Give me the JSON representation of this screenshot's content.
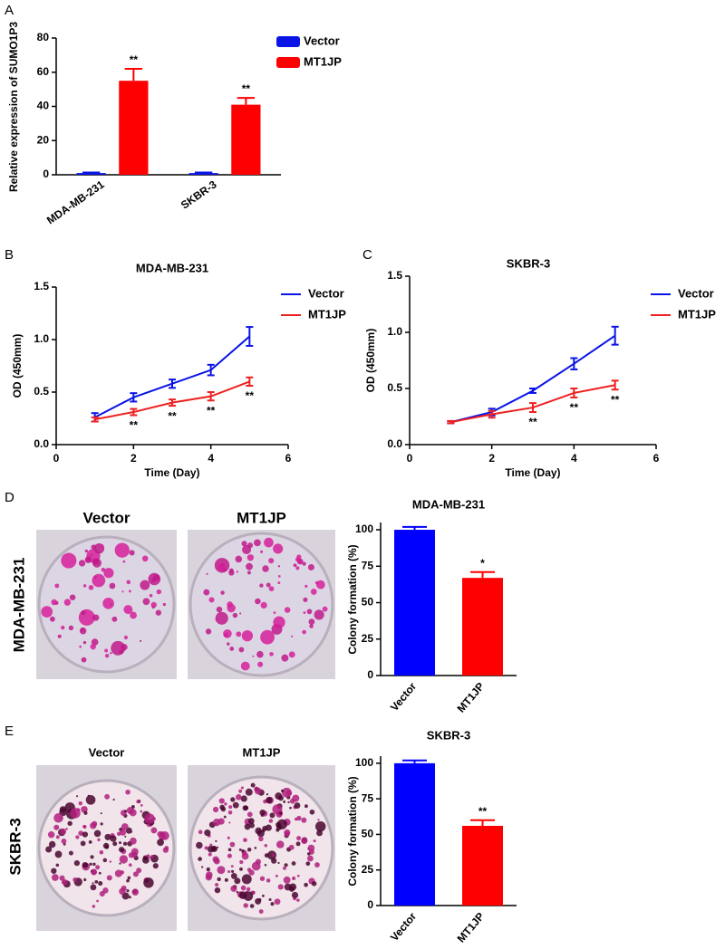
{
  "chart_data": [
    {
      "type": "bar",
      "panel": "A",
      "ylabel": "Relative expression of SUMO1P3",
      "categories": [
        "MDA-MB-231",
        "SKBR-3"
      ],
      "series": [
        {
          "name": "Vector",
          "color": "#0a14e6",
          "values": [
            1,
            1
          ],
          "errors": [
            0.3,
            0.3
          ]
        },
        {
          "name": "MT1JP",
          "color": "#ff0000",
          "values": [
            55,
            41
          ],
          "errors": [
            7,
            4
          ],
          "significance": [
            "**",
            "**"
          ]
        }
      ],
      "ylim": [
        0,
        80
      ],
      "yticks": [
        0,
        20,
        40,
        60,
        80
      ]
    },
    {
      "type": "line",
      "panel": "B",
      "title": "MDA-MB-231",
      "xlabel": "Time (Day)",
      "ylabel": "OD (450mm)",
      "x": [
        1,
        2,
        3,
        4,
        5
      ],
      "series": [
        {
          "name": "Vector",
          "color": "#0a14e6",
          "values": [
            0.26,
            0.45,
            0.58,
            0.71,
            1.03
          ],
          "errors": [
            0.04,
            0.04,
            0.04,
            0.05,
            0.09
          ]
        },
        {
          "name": "MT1JP",
          "color": "#ee2020",
          "values": [
            0.24,
            0.31,
            0.4,
            0.46,
            0.6
          ],
          "errors": [
            0.02,
            0.03,
            0.03,
            0.04,
            0.04
          ],
          "significance": [
            null,
            "**",
            "**",
            "**",
            "**"
          ]
        }
      ],
      "xlim": [
        0,
        6
      ],
      "xticks": [
        0,
        2,
        4,
        6
      ],
      "ylim": [
        0,
        1.5
      ],
      "yticks": [
        {
          "value": 0,
          "label": "0.0"
        },
        0.5,
        {
          "value": 1,
          "label": "1.0"
        },
        1.5
      ]
    },
    {
      "type": "line",
      "panel": "C",
      "title": "SKBR-3",
      "xlabel": "Time (Day)",
      "ylabel": "OD (450mm)",
      "x": [
        1,
        2,
        3,
        4,
        5
      ],
      "series": [
        {
          "name": "Vector",
          "color": "#0a14e6",
          "values": [
            0.2,
            0.29,
            0.48,
            0.72,
            0.97
          ],
          "errors": [
            0.01,
            0.03,
            0.02,
            0.05,
            0.08
          ]
        },
        {
          "name": "MT1JP",
          "color": "#ee2020",
          "values": [
            0.2,
            0.27,
            0.33,
            0.46,
            0.53
          ],
          "errors": [
            0.01,
            0.03,
            0.04,
            0.04,
            0.04
          ],
          "significance": [
            null,
            null,
            "**",
            "**",
            "**"
          ]
        }
      ],
      "xlim": [
        0,
        6
      ],
      "xticks": [
        0,
        2,
        4,
        6
      ],
      "ylim": [
        0,
        1.5
      ],
      "yticks": [
        {
          "value": 0,
          "label": "0.0"
        },
        0.5,
        {
          "value": 1,
          "label": "1.0"
        },
        1.5
      ]
    },
    {
      "type": "bar",
      "title": "MDA-MB-231",
      "ylabel": "Colony formation (%)",
      "categories": [
        "Vector",
        "MT1JP"
      ],
      "values": [
        100,
        67
      ],
      "errors": [
        2,
        4
      ],
      "colors": [
        "#0000ff",
        "#ff0000"
      ],
      "significance": [
        null,
        "*"
      ],
      "ylim": [
        0,
        105
      ],
      "yticks": [
        0,
        25,
        50,
        75,
        100
      ]
    },
    {
      "type": "bar",
      "title": "SKBR-3",
      "ylabel": "Colony formation (%)",
      "categories": [
        "Vector",
        "MT1JP"
      ],
      "values": [
        100,
        56
      ],
      "errors": [
        2,
        4
      ],
      "colors": [
        "#0000ff",
        "#ff0000"
      ],
      "significance": [
        null,
        "**"
      ],
      "ylim": [
        0,
        105
      ],
      "yticks": [
        0,
        25,
        50,
        75,
        100
      ]
    }
  ],
  "photo_panels": [
    {
      "panel": "D",
      "row_label": "MDA-MB-231",
      "columns": [
        "Vector",
        "MT1JP"
      ]
    },
    {
      "panel": "E",
      "row_label": "SKBR-3",
      "columns": [
        "Vector",
        "MT1JP"
      ]
    }
  ]
}
